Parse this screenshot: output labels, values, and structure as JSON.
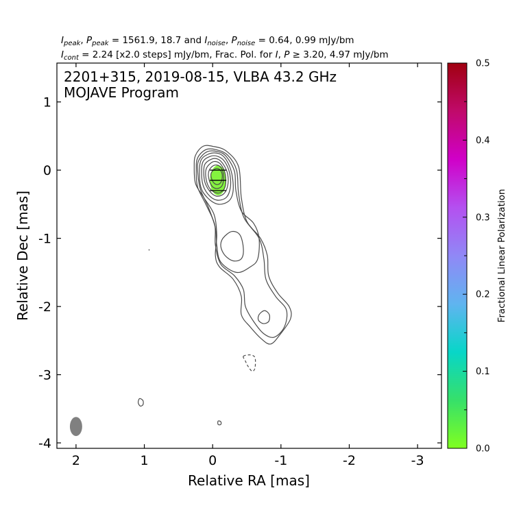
{
  "header": {
    "line1": {
      "i_peak_sym": "I",
      "i_peak_sub": "peak",
      "sep1": ", ",
      "p_peak_sym": "P",
      "p_peak_sub": "peak",
      "peak_values": " = 1561.9, 18.7 and ",
      "i_noise_sym": "I",
      "i_noise_sub": "noise",
      "sep2": ", ",
      "p_noise_sym": "P",
      "p_noise_sub": "noise",
      "noise_values": " = 0.64, 0.99 mJy/bm"
    },
    "line2": {
      "i_cont_sym": "I",
      "i_cont_sub": "cont",
      "cont_text": " = 2.24 [x2.0 steps] mJy/bm, Frac. Pol. for ",
      "i_sym": "I",
      "sep": ", ",
      "p_sym": "P",
      "thresh_text": " ≥ 3.20, 4.97 mJy/bm"
    }
  },
  "chart_data": {
    "type": "contour",
    "title_line1": "2201+315, 2019-08-15, VLBA 43.2 GHz",
    "title_line2": "MOJAVE Program",
    "xlabel": "Relative RA [mas]",
    "ylabel": "Relative Dec [mas]",
    "xlim": [
      2.28,
      -3.35
    ],
    "ylim": [
      -4.08,
      1.57
    ],
    "x_ticks": [
      {
        "v": 2,
        "label": "2"
      },
      {
        "v": 1,
        "label": "1"
      },
      {
        "v": 0,
        "label": "0"
      },
      {
        "v": -1,
        "label": "-1"
      },
      {
        "v": -2,
        "label": "-2"
      },
      {
        "v": -3,
        "label": "-3"
      }
    ],
    "y_ticks": [
      {
        "v": 1,
        "label": "1"
      },
      {
        "v": 0,
        "label": "0"
      },
      {
        "v": -1,
        "label": "-1"
      },
      {
        "v": -2,
        "label": "-2"
      },
      {
        "v": -3,
        "label": "-3"
      },
      {
        "v": -4,
        "label": "-4"
      }
    ],
    "contour_base_mjy": 2.24,
    "contour_step_factor": 2.0,
    "contours": [
      {
        "level": 1,
        "style": "solid",
        "points": [
          [
            0.25,
            0.22
          ],
          [
            0.14,
            0.35
          ],
          [
            0,
            0.35
          ],
          [
            -0.2,
            0.28
          ],
          [
            -0.38,
            0.05
          ],
          [
            -0.42,
            -0.4
          ],
          [
            -0.5,
            -0.75
          ],
          [
            -0.7,
            -1.0
          ],
          [
            -0.8,
            -1.25
          ],
          [
            -0.82,
            -1.55
          ],
          [
            -0.95,
            -1.8
          ],
          [
            -1.12,
            -2.0
          ],
          [
            -1.14,
            -2.18
          ],
          [
            -0.98,
            -2.42
          ],
          [
            -0.85,
            -2.55
          ],
          [
            -0.72,
            -2.48
          ],
          [
            -0.55,
            -2.3
          ],
          [
            -0.42,
            -2.12
          ],
          [
            -0.42,
            -1.85
          ],
          [
            -0.3,
            -1.6
          ],
          [
            -0.1,
            -1.42
          ],
          [
            -0.04,
            -1.25
          ],
          [
            -0.06,
            -0.95
          ],
          [
            -0.02,
            -0.65
          ],
          [
            0.13,
            -0.4
          ],
          [
            0.25,
            -0.2
          ],
          [
            0.27,
            0.05
          ]
        ]
      },
      {
        "level": 2,
        "style": "solid",
        "points": [
          [
            0.22,
            0.18
          ],
          [
            0.1,
            0.3
          ],
          [
            -0.05,
            0.3
          ],
          [
            -0.22,
            0.22
          ],
          [
            -0.35,
            0.0
          ],
          [
            -0.38,
            -0.35
          ],
          [
            -0.46,
            -0.7
          ],
          [
            -0.68,
            -1.0
          ],
          [
            -0.75,
            -1.3
          ],
          [
            -0.78,
            -1.6
          ],
          [
            -0.92,
            -1.85
          ],
          [
            -1.08,
            -2.05
          ],
          [
            -1.05,
            -2.3
          ],
          [
            -0.9,
            -2.45
          ],
          [
            -0.75,
            -2.4
          ],
          [
            -0.6,
            -2.22
          ],
          [
            -0.48,
            -2.0
          ],
          [
            -0.45,
            -1.75
          ],
          [
            -0.32,
            -1.55
          ],
          [
            -0.12,
            -1.38
          ],
          [
            -0.04,
            -1.1
          ],
          [
            -0.03,
            -0.8
          ],
          [
            0.1,
            -0.5
          ],
          [
            0.22,
            -0.25
          ],
          [
            0.24,
            0.0
          ]
        ]
      },
      {
        "level": 3,
        "style": "solid",
        "points": [
          [
            0.2,
            0.15
          ],
          [
            0.08,
            0.27
          ],
          [
            -0.08,
            0.27
          ],
          [
            -0.2,
            0.2
          ],
          [
            -0.32,
            -0.02
          ],
          [
            -0.34,
            -0.3
          ],
          [
            -0.42,
            -0.6
          ],
          [
            -0.6,
            -0.78
          ],
          [
            -0.68,
            -1.0
          ],
          [
            -0.66,
            -1.3
          ],
          [
            -0.55,
            -1.42
          ],
          [
            -0.35,
            -1.5
          ],
          [
            -0.12,
            -1.35
          ],
          [
            -0.06,
            -1.1
          ],
          [
            -0.04,
            -0.85
          ],
          [
            0.06,
            -0.55
          ],
          [
            0.18,
            -0.28
          ],
          [
            0.22,
            0.0
          ]
        ]
      },
      {
        "level": 4,
        "style": "solid",
        "points": [
          [
            0.18,
            0.12
          ],
          [
            0.05,
            0.24
          ],
          [
            -0.1,
            0.24
          ],
          [
            -0.2,
            0.15
          ],
          [
            -0.28,
            -0.05
          ],
          [
            -0.3,
            -0.3
          ],
          [
            -0.24,
            -0.45
          ],
          [
            -0.08,
            -0.5
          ],
          [
            0.08,
            -0.4
          ],
          [
            0.18,
            -0.22
          ]
        ]
      },
      {
        "level": 5,
        "style": "solid",
        "points": [
          [
            0.15,
            0.1
          ],
          [
            0.04,
            0.2
          ],
          [
            -0.08,
            0.2
          ],
          [
            -0.18,
            0.12
          ],
          [
            -0.25,
            -0.05
          ],
          [
            -0.26,
            -0.25
          ],
          [
            -0.2,
            -0.4
          ],
          [
            -0.06,
            -0.44
          ],
          [
            0.07,
            -0.35
          ],
          [
            0.15,
            -0.18
          ]
        ]
      },
      {
        "level": 6,
        "style": "solid",
        "points": [
          [
            0.12,
            0.07
          ],
          [
            0.02,
            0.16
          ],
          [
            -0.08,
            0.16
          ],
          [
            -0.16,
            0.08
          ],
          [
            -0.22,
            -0.06
          ],
          [
            -0.22,
            -0.23
          ],
          [
            -0.16,
            -0.35
          ],
          [
            -0.05,
            -0.38
          ],
          [
            0.05,
            -0.3
          ],
          [
            0.12,
            -0.15
          ]
        ]
      },
      {
        "level": 7,
        "style": "solid",
        "points": [
          [
            0.09,
            0.03
          ],
          [
            0.0,
            0.12
          ],
          [
            -0.09,
            0.11
          ],
          [
            -0.16,
            0.02
          ],
          [
            -0.19,
            -0.1
          ],
          [
            -0.18,
            -0.25
          ],
          [
            -0.11,
            -0.33
          ],
          [
            -0.02,
            -0.32
          ],
          [
            0.06,
            -0.24
          ],
          [
            0.1,
            -0.1
          ]
        ]
      },
      {
        "level": 8,
        "style": "solid",
        "points": [
          [
            0.05,
            0.0
          ],
          [
            -0.02,
            0.07
          ],
          [
            -0.1,
            0.06
          ],
          [
            -0.15,
            -0.02
          ],
          [
            -0.16,
            -0.14
          ],
          [
            -0.13,
            -0.24
          ],
          [
            -0.05,
            -0.27
          ],
          [
            0.02,
            -0.22
          ],
          [
            0.06,
            -0.1
          ]
        ]
      },
      {
        "level": 9,
        "style": "solid",
        "points": [
          [
            0.02,
            -0.04
          ],
          [
            -0.04,
            0.02
          ],
          [
            -0.1,
            0.01
          ],
          [
            -0.14,
            -0.06
          ],
          [
            -0.13,
            -0.16
          ],
          [
            -0.08,
            -0.21
          ],
          [
            -0.02,
            -0.19
          ],
          [
            0.02,
            -0.11
          ]
        ]
      },
      {
        "level": 3,
        "style": "solid",
        "points": [
          [
            -0.15,
            -1.0
          ],
          [
            -0.28,
            -0.9
          ],
          [
            -0.4,
            -0.95
          ],
          [
            -0.45,
            -1.15
          ],
          [
            -0.42,
            -1.3
          ],
          [
            -0.3,
            -1.33
          ],
          [
            -0.18,
            -1.25
          ],
          [
            -0.12,
            -1.12
          ]
        ]
      },
      {
        "level": 4,
        "style": "solid",
        "points": [
          [
            -0.68,
            -2.12
          ],
          [
            -0.76,
            -2.06
          ],
          [
            -0.83,
            -2.12
          ],
          [
            -0.82,
            -2.22
          ],
          [
            -0.74,
            -2.25
          ],
          [
            -0.67,
            -2.2
          ]
        ]
      },
      {
        "level": 1,
        "style": "solid",
        "points": [
          [
            1.07,
            -3.35
          ],
          [
            1.02,
            -3.38
          ],
          [
            1.02,
            -3.44
          ],
          [
            1.06,
            -3.46
          ],
          [
            1.09,
            -3.41
          ]
        ]
      },
      {
        "level": 1,
        "style": "solid",
        "points": [
          [
            -0.08,
            -3.68
          ],
          [
            -0.12,
            -3.69
          ],
          [
            -0.12,
            -3.73
          ],
          [
            -0.08,
            -3.73
          ]
        ]
      },
      {
        "level": -1,
        "style": "dashed",
        "points": [
          [
            -0.45,
            -2.73
          ],
          [
            -0.55,
            -2.71
          ],
          [
            -0.62,
            -2.75
          ],
          [
            -0.62,
            -2.9
          ],
          [
            -0.58,
            -2.95
          ],
          [
            -0.52,
            -2.88
          ],
          [
            -0.48,
            -2.8
          ]
        ]
      }
    ],
    "polarization_region": {
      "center": [
        -0.08,
        -0.15
      ],
      "semi_axes_mas": [
        0.12,
        0.22
      ],
      "fractional_pol": 0.03,
      "color": "#84f23f"
    },
    "evpa_ticks": [
      {
        "x": -0.08,
        "y": 0.0,
        "angle_deg": 0
      },
      {
        "x": -0.08,
        "y": -0.15,
        "angle_deg": 0
      },
      {
        "x": -0.08,
        "y": -0.3,
        "angle_deg": 0
      }
    ],
    "beam": {
      "center": [
        2.0,
        -3.76
      ],
      "semi_axes_mas": [
        0.09,
        0.14
      ],
      "color": "#808080"
    },
    "colorbar": {
      "title": "Fractional Linear Polarization",
      "min": 0.0,
      "max": 0.5,
      "ticks": [
        {
          "v": 0.0,
          "label": "0.0"
        },
        {
          "v": 0.1,
          "label": "0.1"
        },
        {
          "v": 0.2,
          "label": "0.2"
        },
        {
          "v": 0.3,
          "label": "0.3"
        },
        {
          "v": 0.4,
          "label": "0.4"
        },
        {
          "v": 0.5,
          "label": "0.5"
        }
      ],
      "colors": [
        "#80ff20",
        "#36e06a",
        "#08d6c8",
        "#60b4f0",
        "#9088f6",
        "#b450f0",
        "#d000c8",
        "#c00a6a",
        "#a00010"
      ]
    }
  }
}
